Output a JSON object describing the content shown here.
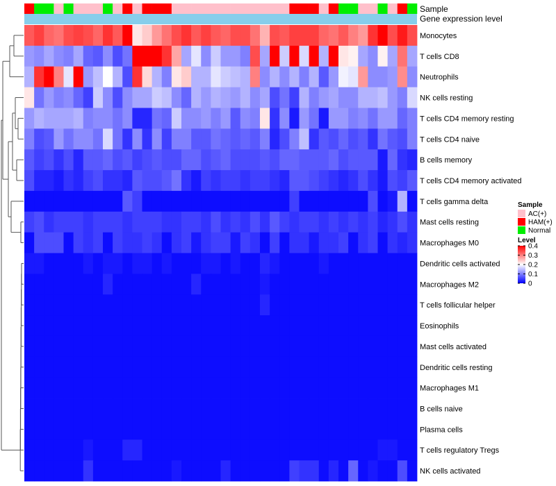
{
  "chart_data": {
    "type": "heatmap",
    "title": "",
    "annotation_rows": [
      "Sample",
      "Gene expression level"
    ],
    "sample_groups": [
      "HAM(+)",
      "Normal",
      "Normal",
      "AC(+)",
      "Normal",
      "AC(+)",
      "AC(+)",
      "AC(+)",
      "Normal",
      "AC(+)",
      "HAM(+)",
      "AC(+)",
      "HAM(+)",
      "HAM(+)",
      "HAM(+)",
      "AC(+)",
      "AC(+)",
      "AC(+)",
      "AC(+)",
      "AC(+)",
      "AC(+)",
      "AC(+)",
      "AC(+)",
      "AC(+)",
      "AC(+)",
      "AC(+)",
      "AC(+)",
      "HAM(+)",
      "HAM(+)",
      "HAM(+)",
      "AC(+)",
      "HAM(+)",
      "Normal",
      "Normal",
      "AC(+)",
      "AC(+)",
      "Normal",
      "AC(+)",
      "HAM(+)",
      "Normal"
    ],
    "row_labels": [
      "Monocytes",
      "T cells CD8",
      "Neutrophils",
      "NK cells resting",
      "T cells CD4 memory resting",
      "T cells CD4 naive",
      "B cells memory",
      "T cells CD4 memory activated",
      "T cells gamma delta",
      "Mast cells resting",
      "Macrophages M0",
      "Dendritic cells activated",
      "Macrophages M2",
      "T cells follicular helper",
      "Eosinophils",
      "Mast cells activated",
      "Dendritic cells resting",
      "Macrophages M1",
      "B cells naive",
      "Plasma cells",
      "T cells regulatory  Tregs",
      "NK cells activated"
    ],
    "values": [
      [
        0.33,
        0.35,
        0.32,
        0.31,
        0.34,
        0.35,
        0.34,
        0.32,
        0.36,
        0.33,
        0.4,
        0.22,
        0.24,
        0.28,
        0.31,
        0.34,
        0.36,
        0.33,
        0.35,
        0.33,
        0.32,
        0.34,
        0.34,
        0.31,
        0.26,
        0.34,
        0.33,
        0.35,
        0.35,
        0.35,
        0.32,
        0.31,
        0.33,
        0.3,
        0.28,
        0.36,
        0.4,
        0.34,
        0.38,
        0.34
      ],
      [
        0.12,
        0.11,
        0.13,
        0.11,
        0.1,
        0.13,
        0.08,
        0.07,
        0.11,
        0.06,
        0.09,
        0.42,
        0.42,
        0.42,
        0.36,
        0.27,
        0.13,
        0.18,
        0.11,
        0.16,
        0.12,
        0.12,
        0.1,
        0.34,
        0.13,
        0.42,
        0.16,
        0.4,
        0.17,
        0.44,
        0.14,
        0.44,
        0.22,
        0.21,
        0.13,
        0.11,
        0.21,
        0.13,
        0.31,
        0.13
      ],
      [
        0.14,
        0.36,
        0.44,
        0.3,
        0.18,
        0.42,
        0.12,
        0.15,
        0.2,
        0.14,
        0.06,
        0.36,
        0.23,
        0.14,
        0.1,
        0.22,
        0.24,
        0.14,
        0.14,
        0.18,
        0.16,
        0.15,
        0.14,
        0.3,
        0.11,
        0.14,
        0.11,
        0.14,
        0.1,
        0.14,
        0.07,
        0.12,
        0.19,
        0.18,
        0.28,
        0.11,
        0.11,
        0.12,
        0.29,
        0.11
      ],
      [
        0.22,
        0.09,
        0.12,
        0.1,
        0.11,
        0.08,
        0.05,
        0.16,
        0.11,
        0.06,
        0.11,
        0.13,
        0.13,
        0.16,
        0.15,
        0.11,
        0.08,
        0.14,
        0.12,
        0.14,
        0.13,
        0.12,
        0.14,
        0.11,
        0.13,
        0.06,
        0.09,
        0.05,
        0.14,
        0.1,
        0.12,
        0.13,
        0.11,
        0.11,
        0.14,
        0.14,
        0.15,
        0.12,
        0.1,
        0.17
      ],
      [
        0.12,
        0.14,
        0.13,
        0.13,
        0.13,
        0.14,
        0.1,
        0.11,
        0.11,
        0.09,
        0.11,
        0.03,
        0.03,
        0.09,
        0.08,
        0.16,
        0.11,
        0.11,
        0.12,
        0.1,
        0.12,
        0.07,
        0.11,
        0.1,
        0.22,
        0.04,
        0.11,
        0.02,
        0.12,
        0.09,
        0.02,
        0.12,
        0.12,
        0.1,
        0.11,
        0.09,
        0.12,
        0.12,
        0.08,
        0.1
      ],
      [
        0.1,
        0.06,
        0.07,
        0.12,
        0.09,
        0.11,
        0.11,
        0.09,
        0.17,
        0.09,
        0.04,
        0.11,
        0.04,
        0.11,
        0.05,
        0.1,
        0.1,
        0.07,
        0.07,
        0.09,
        0.08,
        0.07,
        0.08,
        0.07,
        0.1,
        0.03,
        0.06,
        0.1,
        0.15,
        0.04,
        0.07,
        0.06,
        0.08,
        0.06,
        0.07,
        0.04,
        0.09,
        0.07,
        0.06,
        0.1
      ],
      [
        0.07,
        0.05,
        0.06,
        0.04,
        0.06,
        0.03,
        0.07,
        0.07,
        0.08,
        0.06,
        0.07,
        0.05,
        0.06,
        0.07,
        0.06,
        0.06,
        0.08,
        0.08,
        0.06,
        0.07,
        0.08,
        0.06,
        0.06,
        0.06,
        0.07,
        0.06,
        0.08,
        0.08,
        0.07,
        0.07,
        0.07,
        0.08,
        0.06,
        0.07,
        0.07,
        0.07,
        0.02,
        0.08,
        0.04,
        0.03
      ],
      [
        0.06,
        0.03,
        0.03,
        0.02,
        0.04,
        0.03,
        0.05,
        0.06,
        0.04,
        0.04,
        0.03,
        0.07,
        0.06,
        0.06,
        0.07,
        0.09,
        0.04,
        0.02,
        0.05,
        0.04,
        0.05,
        0.05,
        0.04,
        0.05,
        0.05,
        0.04,
        0.03,
        0.07,
        0.07,
        0.06,
        0.05,
        0.04,
        0.03,
        0.04,
        0.06,
        0.04,
        0.02,
        0.06,
        0.05,
        0.07
      ],
      [
        0.01,
        0.01,
        0.01,
        0.01,
        0.01,
        0.01,
        0.01,
        0.01,
        0.01,
        0.01,
        0.07,
        0.05,
        0.01,
        0.01,
        0.01,
        0.01,
        0.01,
        0.01,
        0.01,
        0.01,
        0.01,
        0.01,
        0.01,
        0.01,
        0.01,
        0.01,
        0.01,
        0.05,
        0.01,
        0.01,
        0.01,
        0.01,
        0.01,
        0.01,
        0.01,
        0.06,
        0.01,
        0.02,
        0.14,
        0.01
      ],
      [
        0.05,
        0.06,
        0.04,
        0.05,
        0.05,
        0.05,
        0.04,
        0.05,
        0.05,
        0.05,
        0.04,
        0.05,
        0.05,
        0.05,
        0.04,
        0.04,
        0.05,
        0.05,
        0.04,
        0.06,
        0.04,
        0.05,
        0.04,
        0.06,
        0.04,
        0.07,
        0.05,
        0.04,
        0.05,
        0.05,
        0.04,
        0.05,
        0.04,
        0.05,
        0.04,
        0.05,
        0.03,
        0.04,
        0.06,
        0.04
      ],
      [
        0.01,
        0.06,
        0.06,
        0.06,
        0.01,
        0.05,
        0.04,
        0.05,
        0.01,
        0.05,
        0.04,
        0.04,
        0.05,
        0.04,
        0.01,
        0.04,
        0.05,
        0.02,
        0.04,
        0.05,
        0.05,
        0.02,
        0.05,
        0.04,
        0.01,
        0.05,
        0.01,
        0.04,
        0.04,
        0.02,
        0.04,
        0.04,
        0.05,
        0.01,
        0.04,
        0.05,
        0.01,
        0.04,
        0.03,
        0.04
      ],
      [
        0.02,
        0.02,
        0.01,
        0.01,
        0.01,
        0.01,
        0.02,
        0.01,
        0.02,
        0.02,
        0.01,
        0.02,
        0.02,
        0.01,
        0.02,
        0.01,
        0.01,
        0.01,
        0.02,
        0.02,
        0.01,
        0.02,
        0.01,
        0.01,
        0.03,
        0.02,
        0.01,
        0.01,
        0.01,
        0.01,
        0.02,
        0.01,
        0.01,
        0.01,
        0.01,
        0.01,
        0.01,
        0.01,
        0.01,
        0.01
      ],
      [
        0.01,
        0.01,
        0.01,
        0.01,
        0.01,
        0.01,
        0.01,
        0.01,
        0.03,
        0.01,
        0.01,
        0.01,
        0.01,
        0.01,
        0.01,
        0.01,
        0.01,
        0.03,
        0.01,
        0.01,
        0.01,
        0.01,
        0.01,
        0.01,
        0.02,
        0.01,
        0.01,
        0.01,
        0.01,
        0.01,
        0.01,
        0.01,
        0.01,
        0.01,
        0.01,
        0.01,
        0.01,
        0.01,
        0.01,
        0.01
      ],
      [
        0.01,
        0.01,
        0.01,
        0.01,
        0.01,
        0.01,
        0.01,
        0.01,
        0.01,
        0.01,
        0.01,
        0.01,
        0.01,
        0.01,
        0.01,
        0.01,
        0.01,
        0.01,
        0.01,
        0.01,
        0.01,
        0.01,
        0.01,
        0.01,
        0.03,
        0.01,
        0.01,
        0.01,
        0.01,
        0.01,
        0.01,
        0.01,
        0.01,
        0.01,
        0.01,
        0.01,
        0.01,
        0.01,
        0.01,
        0.01
      ],
      [
        0.01,
        0.01,
        0.01,
        0.01,
        0.01,
        0.01,
        0.01,
        0.01,
        0.01,
        0.01,
        0.01,
        0.01,
        0.01,
        0.01,
        0.01,
        0.01,
        0.01,
        0.01,
        0.01,
        0.01,
        0.01,
        0.01,
        0.01,
        0.01,
        0.01,
        0.01,
        0.01,
        0.01,
        0.01,
        0.01,
        0.01,
        0.01,
        0.01,
        0.01,
        0.01,
        0.01,
        0.01,
        0.01,
        0.01,
        0.01
      ],
      [
        0.01,
        0.01,
        0.01,
        0.01,
        0.01,
        0.01,
        0.01,
        0.01,
        0.01,
        0.01,
        0.01,
        0.01,
        0.01,
        0.01,
        0.01,
        0.01,
        0.01,
        0.01,
        0.01,
        0.01,
        0.01,
        0.01,
        0.01,
        0.01,
        0.01,
        0.01,
        0.01,
        0.01,
        0.01,
        0.01,
        0.01,
        0.01,
        0.01,
        0.01,
        0.01,
        0.01,
        0.01,
        0.01,
        0.01,
        0.01
      ],
      [
        0.01,
        0.01,
        0.01,
        0.01,
        0.01,
        0.01,
        0.01,
        0.01,
        0.01,
        0.01,
        0.01,
        0.01,
        0.01,
        0.01,
        0.01,
        0.01,
        0.01,
        0.01,
        0.01,
        0.01,
        0.01,
        0.01,
        0.01,
        0.01,
        0.01,
        0.01,
        0.01,
        0.01,
        0.01,
        0.01,
        0.01,
        0.01,
        0.01,
        0.01,
        0.01,
        0.01,
        0.01,
        0.01,
        0.01,
        0.01
      ],
      [
        0.01,
        0.01,
        0.01,
        0.01,
        0.01,
        0.01,
        0.01,
        0.01,
        0.01,
        0.01,
        0.01,
        0.01,
        0.01,
        0.01,
        0.01,
        0.01,
        0.01,
        0.01,
        0.01,
        0.01,
        0.01,
        0.01,
        0.01,
        0.01,
        0.01,
        0.01,
        0.01,
        0.01,
        0.01,
        0.01,
        0.01,
        0.01,
        0.01,
        0.01,
        0.01,
        0.01,
        0.01,
        0.01,
        0.01,
        0.01
      ],
      [
        0.01,
        0.01,
        0.01,
        0.01,
        0.01,
        0.01,
        0.01,
        0.01,
        0.01,
        0.01,
        0.01,
        0.01,
        0.01,
        0.01,
        0.01,
        0.01,
        0.01,
        0.01,
        0.01,
        0.01,
        0.01,
        0.01,
        0.01,
        0.01,
        0.01,
        0.01,
        0.01,
        0.01,
        0.01,
        0.01,
        0.01,
        0.01,
        0.01,
        0.01,
        0.01,
        0.01,
        0.01,
        0.01,
        0.01,
        0.01
      ],
      [
        0.01,
        0.01,
        0.01,
        0.01,
        0.01,
        0.01,
        0.01,
        0.01,
        0.01,
        0.01,
        0.01,
        0.01,
        0.01,
        0.01,
        0.01,
        0.01,
        0.01,
        0.01,
        0.01,
        0.01,
        0.01,
        0.01,
        0.01,
        0.01,
        0.01,
        0.01,
        0.01,
        0.01,
        0.01,
        0.01,
        0.01,
        0.01,
        0.01,
        0.01,
        0.01,
        0.01,
        0.01,
        0.01,
        0.01,
        0.01
      ],
      [
        0.01,
        0.01,
        0.01,
        0.01,
        0.01,
        0.01,
        0.02,
        0.01,
        0.01,
        0.01,
        0.03,
        0.03,
        0.01,
        0.01,
        0.01,
        0.01,
        0.01,
        0.01,
        0.01,
        0.01,
        0.01,
        0.01,
        0.01,
        0.01,
        0.01,
        0.01,
        0.01,
        0.01,
        0.01,
        0.01,
        0.01,
        0.01,
        0.01,
        0.01,
        0.01,
        0.01,
        0.02,
        0.02,
        0.01,
        0.01
      ],
      [
        0.01,
        0.01,
        0.01,
        0.01,
        0.01,
        0.01,
        0.04,
        0.01,
        0.01,
        0.01,
        0.01,
        0.01,
        0.01,
        0.01,
        0.01,
        0.02,
        0.01,
        0.01,
        0.01,
        0.01,
        0.03,
        0.01,
        0.01,
        0.01,
        0.01,
        0.01,
        0.01,
        0.05,
        0.04,
        0.04,
        0.01,
        0.03,
        0.01,
        0.08,
        0.01,
        0.02,
        0.01,
        0.01,
        0.06,
        0.01
      ]
    ],
    "legend": {
      "sample_title": "Sample",
      "sample_items": [
        {
          "label": "AC(+)",
          "color": "#ffc0cb"
        },
        {
          "label": "HAM(+)",
          "color": "#ff0000"
        },
        {
          "label": "Normal",
          "color": "#00ee00"
        }
      ],
      "level_title": "Level",
      "level_ticks": [
        "0.4",
        "0.3",
        "0.2",
        "0.1",
        "0"
      ],
      "level_range": [
        0,
        0.4
      ],
      "placement": "right"
    },
    "colors": {
      "low": "#0000ff",
      "mid": "#ffffff",
      "high": "#ff0000",
      "expression_bar": "#87ceeb"
    }
  }
}
